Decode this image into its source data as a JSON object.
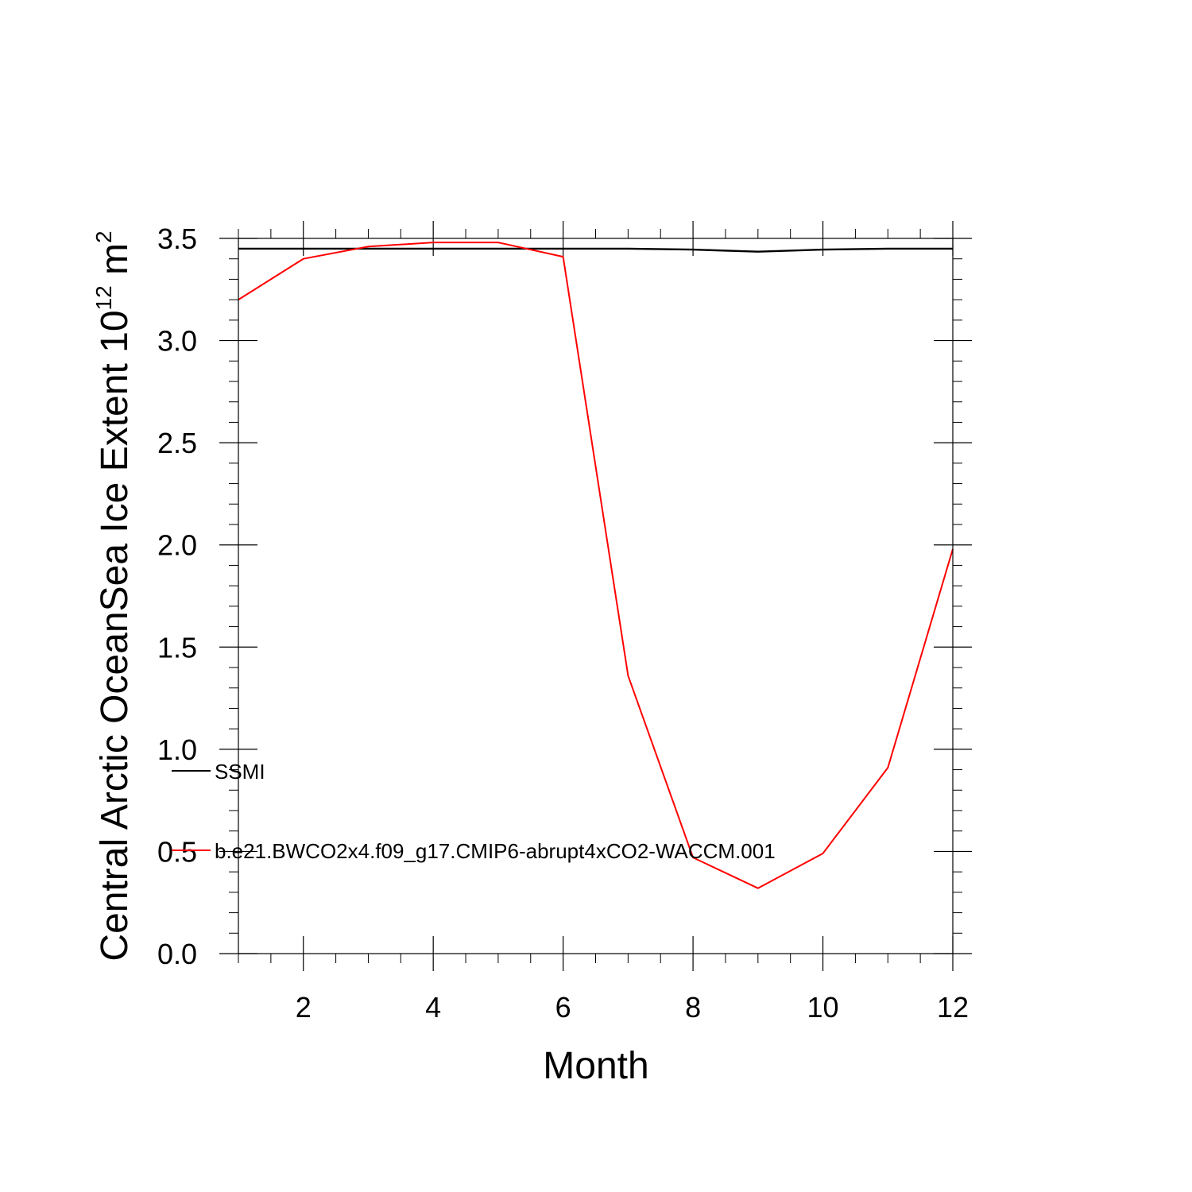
{
  "chart_data": {
    "type": "line",
    "xlabel": "Month",
    "ylabel": {
      "base": "Central Arctic OceanSea Ice Extent 10",
      "exponent1": "12",
      "unit": " m",
      "exponent2": "2"
    },
    "xlim": [
      1,
      12
    ],
    "ylim": [
      0,
      3.5
    ],
    "x_ticks": [
      2,
      4,
      6,
      8,
      10,
      12
    ],
    "y_ticks": [
      "0.0",
      "0.5",
      "1.0",
      "1.5",
      "2.0",
      "2.5",
      "3.0",
      "3.5"
    ],
    "x": [
      1,
      2,
      3,
      4,
      5,
      6,
      7,
      8,
      9,
      10,
      11,
      12
    ],
    "series": [
      {
        "name": "SSMI",
        "color": "#000000",
        "values": [
          3.45,
          3.45,
          3.45,
          3.45,
          3.45,
          3.45,
          3.45,
          3.445,
          3.435,
          3.445,
          3.45,
          3.45
        ]
      },
      {
        "name": "b.e21.BWCO2x4.f09_g17.CMIP6-abrupt4xCO2-WACCM.001",
        "color": "#ff0000",
        "values": [
          3.2,
          3.4,
          3.46,
          3.48,
          3.48,
          3.41,
          1.36,
          0.47,
          0.32,
          0.49,
          0.91,
          1.98
        ]
      }
    ],
    "legend_placement": "lower-left",
    "grid": false
  }
}
